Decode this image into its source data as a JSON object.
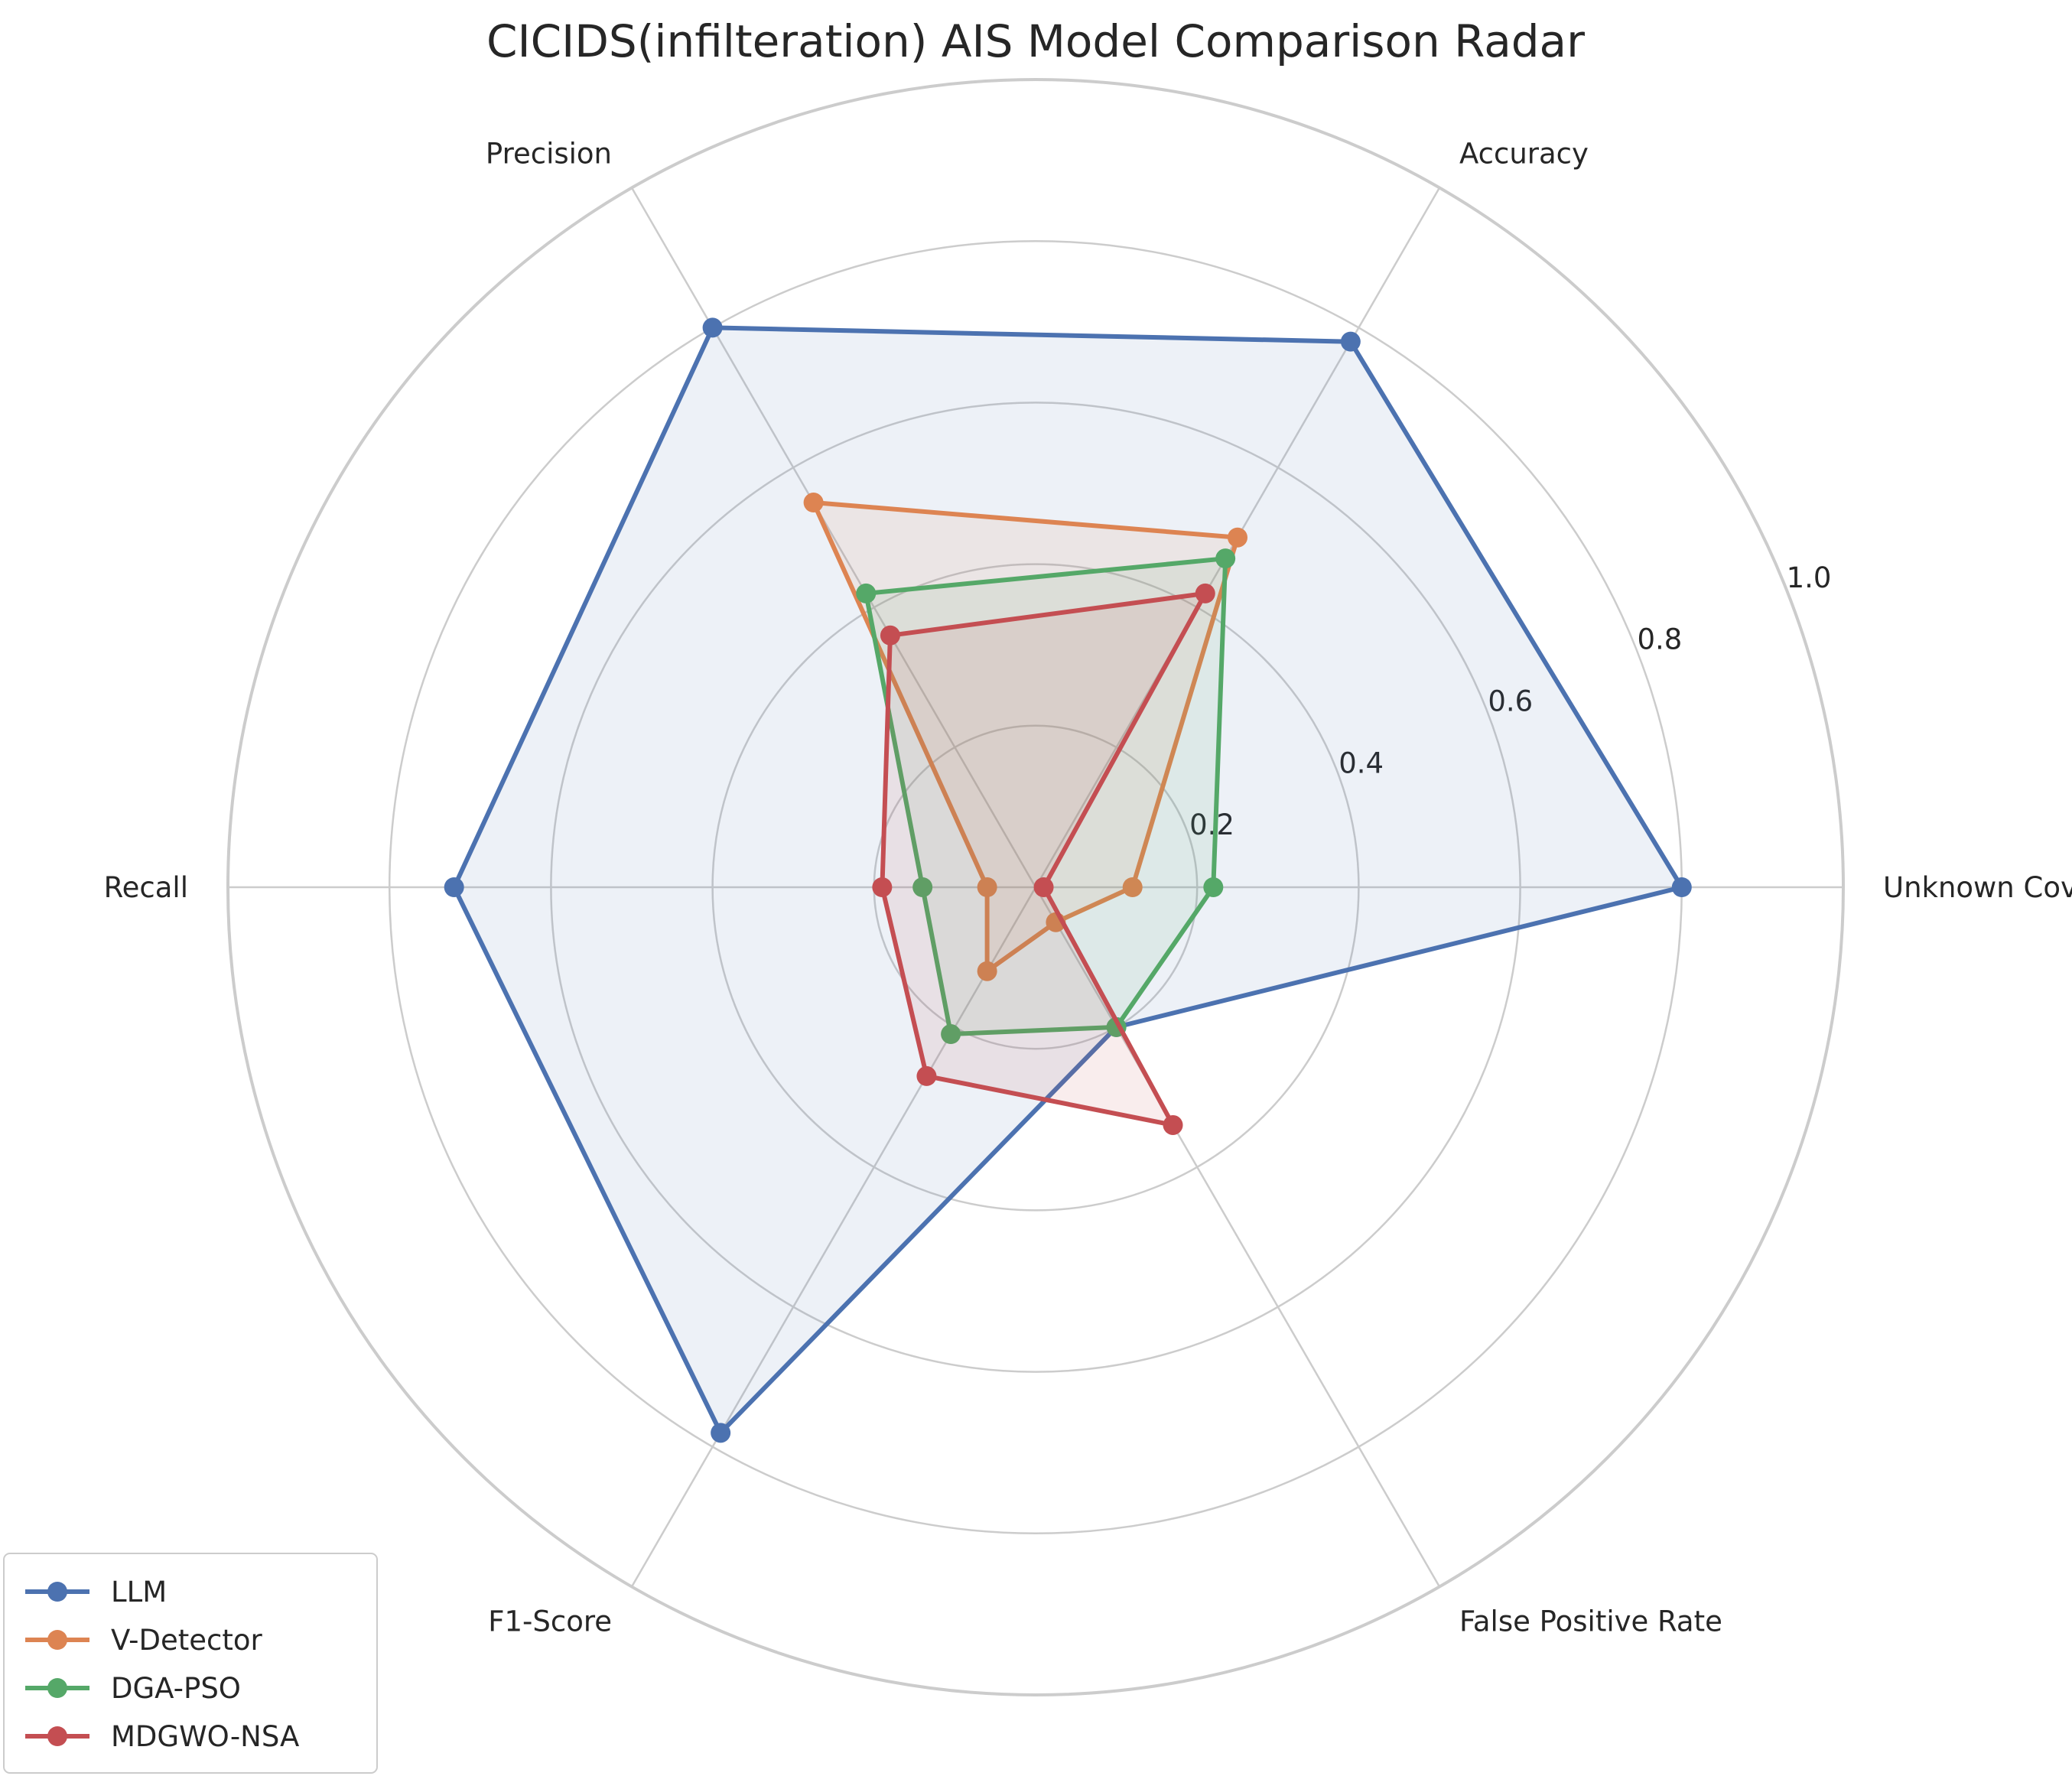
{
  "chart_data": {
    "type": "radar",
    "title": "CICIDS(infilteration) AIS Model Comparison Radar",
    "categories": [
      "Unknown Coverage",
      "Accuracy",
      "Precision",
      "Recall",
      "F1-Score",
      "False Positive Rate"
    ],
    "rlim": [
      0,
      1.0
    ],
    "rticks": [
      0.2,
      0.4,
      0.6,
      0.8,
      1.0
    ],
    "rtick_labels": [
      "0.2",
      "0.4",
      "0.6",
      "0.8",
      "1.0"
    ],
    "grid": true,
    "legend_position": "bottom-left",
    "series": [
      {
        "name": "LLM",
        "color": "#4c72b0",
        "values": [
          0.8,
          0.78,
          0.8,
          0.72,
          0.78,
          0.2
        ]
      },
      {
        "name": "V-Detector",
        "color": "#dd8452",
        "values": [
          0.12,
          0.5,
          0.55,
          0.06,
          0.12,
          0.05
        ]
      },
      {
        "name": "DGA-PSO",
        "color": "#55a868",
        "values": [
          0.22,
          0.47,
          0.42,
          0.14,
          0.21,
          0.2
        ]
      },
      {
        "name": "MDGWO-NSA",
        "color": "#c44e52",
        "values": [
          0.01,
          0.42,
          0.36,
          0.19,
          0.27,
          0.34
        ]
      }
    ]
  }
}
